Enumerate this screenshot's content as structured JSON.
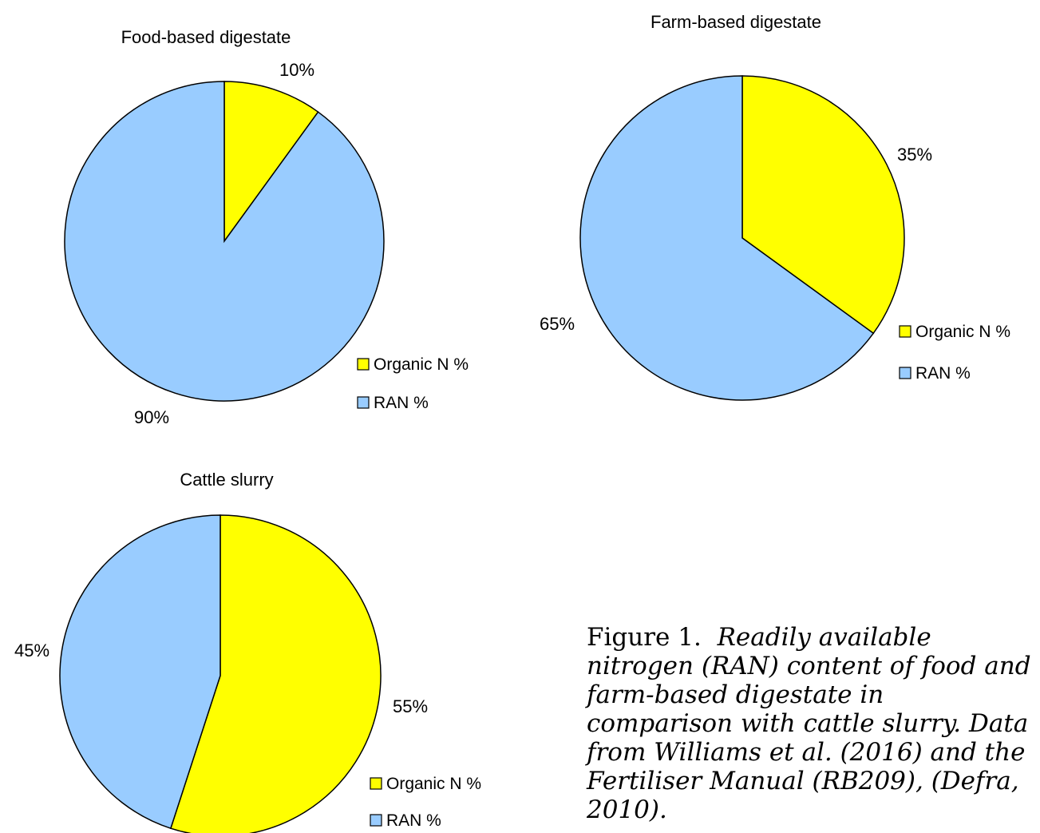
{
  "colors": {
    "organic": "#ffff00",
    "ran": "#99ccff",
    "stroke": "#000000"
  },
  "chart_data": [
    {
      "type": "pie",
      "title": "Food-based digestate",
      "categories": [
        "Organic N %",
        "RAN %"
      ],
      "values": [
        10,
        90
      ],
      "labels": [
        "10%",
        "90%"
      ],
      "legend": {
        "entries": [
          "Organic N %",
          "RAN %"
        ],
        "position": "bottom-right"
      }
    },
    {
      "type": "pie",
      "title": "Farm-based digestate",
      "categories": [
        "Organic N %",
        "RAN %"
      ],
      "values": [
        35,
        65
      ],
      "labels": [
        "35%",
        "65%"
      ],
      "legend": {
        "entries": [
          "Organic N %",
          "RAN %"
        ],
        "position": "bottom-right"
      }
    },
    {
      "type": "pie",
      "title": "Cattle slurry",
      "categories": [
        "Organic N %",
        "RAN %"
      ],
      "values": [
        55,
        45
      ],
      "labels": [
        "55%",
        "45%"
      ],
      "legend": {
        "entries": [
          "Organic N %",
          "RAN %"
        ],
        "position": "bottom-right"
      }
    }
  ],
  "caption": {
    "label": "Figure 1.",
    "text": "Readily available nitrogen (RAN) content of food and farm-based digestate in comparison with cattle slurry. Data from Williams et al. (2016) and the Fertiliser Manual (RB209), (Defra, 2010)."
  }
}
